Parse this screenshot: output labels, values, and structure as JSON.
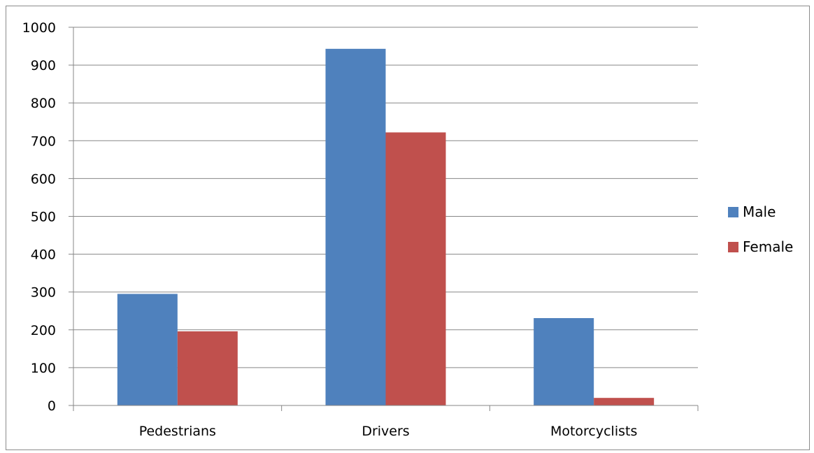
{
  "chart_data": {
    "type": "bar",
    "title": "",
    "xlabel": "",
    "ylabel": "",
    "categories": [
      "Pedestrians",
      "Drivers",
      "Motorcyclists"
    ],
    "series": [
      {
        "name": "Male",
        "color": "#4F81BD",
        "values": [
          295,
          943,
          231
        ]
      },
      {
        "name": "Female",
        "color": "#C0504D",
        "values": [
          196,
          722,
          20
        ]
      }
    ],
    "ylim": [
      0,
      1000
    ],
    "yticks": [
      0,
      100,
      200,
      300,
      400,
      500,
      600,
      700,
      800,
      900,
      1000
    ],
    "grid": true,
    "legend_position": "right"
  }
}
